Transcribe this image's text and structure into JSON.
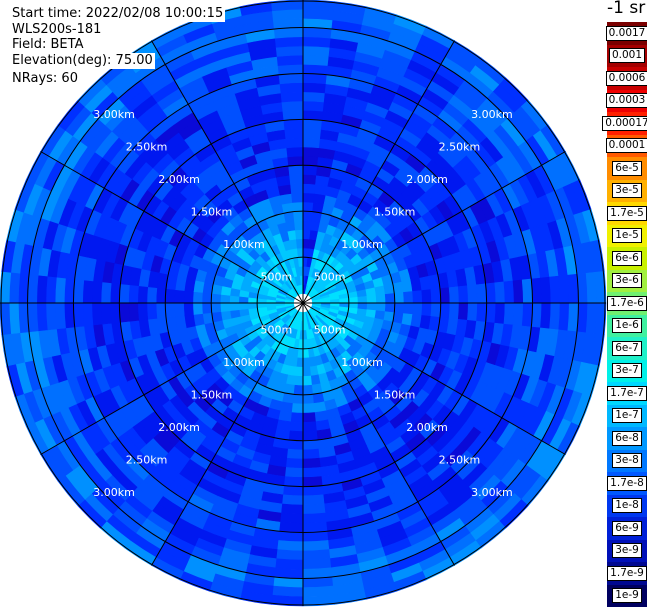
{
  "header": {
    "start_time": "Start time: 2022/02/08 10:00:15",
    "instrument": "WLS200s-181",
    "field": "Field: BETA",
    "elevation": "Elevation(deg): 75.00",
    "nrays": "NRays: 60"
  },
  "colorbar": {
    "units": "-1 sr",
    "levels": [
      {
        "label": "0.0017",
        "color": "#7a0000"
      },
      {
        "label": "0.001",
        "color": "#a30000"
      },
      {
        "label": "0.0006",
        "color": "#c80000"
      },
      {
        "label": "0.0003",
        "color": "#ef0000"
      },
      {
        "label": "0.00017",
        "color": "#ff2000"
      },
      {
        "label": "0.0001",
        "color": "#ff5a00"
      },
      {
        "label": "6e-5",
        "color": "#ff8c00"
      },
      {
        "label": "3e-5",
        "color": "#ffb000"
      },
      {
        "label": "1.7e-5",
        "color": "#ffd800"
      },
      {
        "label": "1e-5",
        "color": "#f0f000"
      },
      {
        "label": "6e-6",
        "color": "#c8f000"
      },
      {
        "label": "3e-6",
        "color": "#a0f040"
      },
      {
        "label": "1.7e-6",
        "color": "#70f070"
      },
      {
        "label": "1e-6",
        "color": "#40f0a0"
      },
      {
        "label": "6e-7",
        "color": "#20f0c8"
      },
      {
        "label": "3e-7",
        "color": "#00f0e8"
      },
      {
        "label": "1.7e-7",
        "color": "#00d8ff"
      },
      {
        "label": "1e-7",
        "color": "#00b8ff"
      },
      {
        "label": "6e-8",
        "color": "#0098ff"
      },
      {
        "label": "3e-8",
        "color": "#0078ff"
      },
      {
        "label": "1.7e-8",
        "color": "#0058ff"
      },
      {
        "label": "1e-8",
        "color": "#0038f0"
      },
      {
        "label": "6e-9",
        "color": "#0020d8"
      },
      {
        "label": "3e-9",
        "color": "#0010b8"
      },
      {
        "label": "1.7e-9",
        "color": "#000890"
      },
      {
        "label": "1e-9",
        "color": "#000060"
      }
    ]
  },
  "plot": {
    "ring_labels": [
      "500m",
      "1.00km",
      "1.50km",
      "2.00km",
      "2.50km",
      "3.00km"
    ],
    "max_range_km": 3.3,
    "nrays": 60,
    "range_gates": 33,
    "grid_color": "#000000",
    "label_color": "#ffffff"
  }
}
